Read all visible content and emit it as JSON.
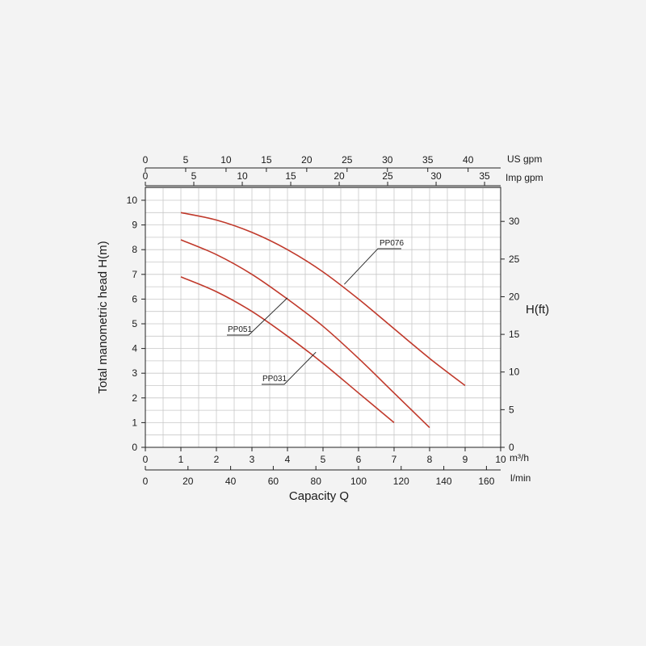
{
  "chart_data": {
    "type": "line",
    "xlabel": "Capacity Q",
    "ylabel": "Total manometric head H(m)",
    "y2label": "H(ft)",
    "x_unit_label": "m³/h",
    "x2_unit_label": "l/min",
    "top1_unit_label": "US gpm",
    "top2_unit_label": "Imp gpm",
    "xlim": [
      0,
      10
    ],
    "ylim": [
      0,
      10.5
    ],
    "grid": true,
    "x_ticks": [
      "0",
      "1",
      "2",
      "3",
      "4",
      "5",
      "6",
      "7",
      "8",
      "9",
      "10"
    ],
    "y_ticks": [
      "0",
      "1",
      "2",
      "3",
      "4",
      "5",
      "6",
      "7",
      "8",
      "9",
      "10"
    ],
    "lmin_ticks": [
      "0",
      "20",
      "40",
      "60",
      "80",
      "100",
      "120",
      "140",
      "160"
    ],
    "usgpm_ticks": [
      "0",
      "5",
      "10",
      "15",
      "20",
      "25",
      "30",
      "35",
      "40"
    ],
    "impgpm_ticks": [
      "0",
      "5",
      "10",
      "15",
      "20",
      "25",
      "30",
      "35"
    ],
    "ft_ticks": [
      "0",
      "5",
      "10",
      "15",
      "20",
      "25",
      "30"
    ],
    "series": [
      {
        "name": "PP076",
        "x": [
          1,
          2,
          3,
          4,
          5,
          6,
          7,
          8,
          9
        ],
        "y": [
          9.5,
          9.2,
          8.7,
          8.0,
          7.1,
          6.0,
          4.8,
          3.6,
          2.5
        ]
      },
      {
        "name": "PP051",
        "x": [
          1,
          2,
          3,
          4,
          5,
          6,
          7,
          8
        ],
        "y": [
          8.4,
          7.8,
          7.0,
          6.0,
          4.9,
          3.6,
          2.2,
          0.8
        ]
      },
      {
        "name": "PP031",
        "x": [
          1,
          2,
          3,
          4,
          5,
          6,
          7
        ],
        "y": [
          6.9,
          6.3,
          5.5,
          4.5,
          3.4,
          2.2,
          1.0
        ]
      }
    ],
    "curve_color": "#c0392b"
  }
}
